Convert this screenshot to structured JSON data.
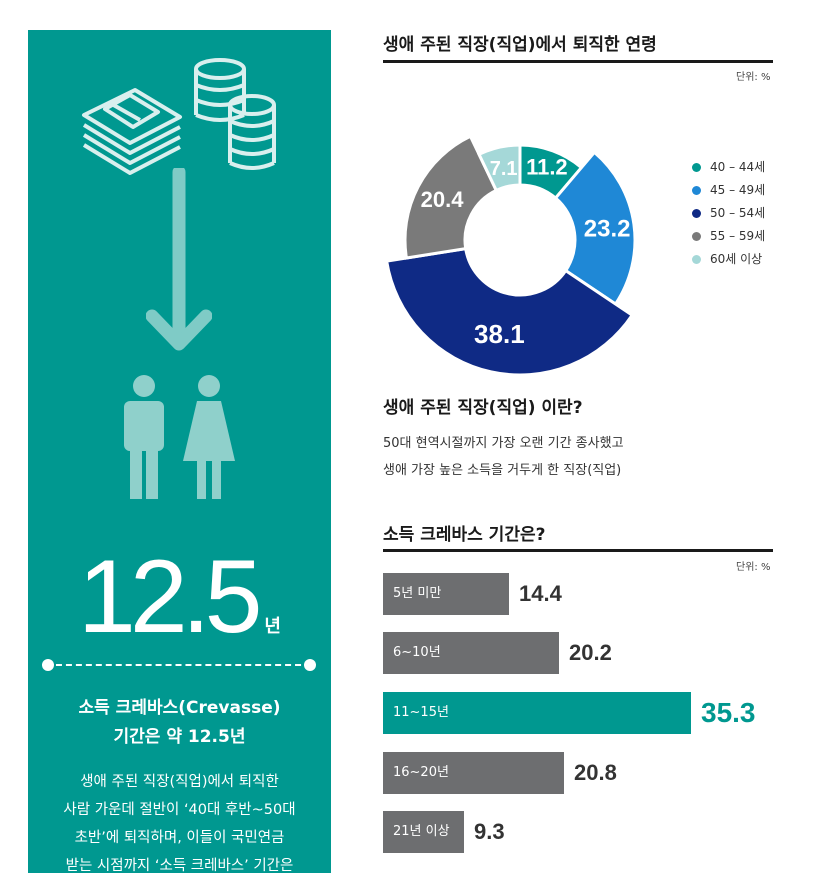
{
  "left_panel": {
    "big_number": "12.5",
    "big_unit": "년",
    "title_line1": "소득 크레바스(Crevasse)",
    "title_line2": "기간은 약 12.5년",
    "desc_line1": "생애 주된 직장(직업)에서 퇴직한",
    "desc_line2": "사람 가운데 절반이 ‘40대 후반~50대",
    "desc_line3": "초반’에 퇴직하며, 이들이 국민연금",
    "desc_line4": "받는 시점까지 ‘소득 크레바스’ 기간은"
  },
  "section1": {
    "title": "생애 주된 직장(직업)에서 퇴직한 연령",
    "unit": "단위: %"
  },
  "section2": {
    "title": "생애 주된 직장(직업) 이란?",
    "line1": "50대 현역시절까지 가장 오랜 기간 종사했고",
    "line2": "생애 가장 높은 소득을 거두게 한 직장(직업)"
  },
  "section3": {
    "title": "소득 크레바스 기간은?",
    "unit": "단위: %"
  },
  "chart_data": [
    {
      "type": "pie",
      "title": "생애 주된 직장(직업)에서 퇴직한 연령",
      "unit": "단위: %",
      "categories": [
        "40 – 44세",
        "45 – 49세",
        "50 – 54세",
        "55 – 59세",
        "60세 이상"
      ],
      "values": [
        11.2,
        23.2,
        38.1,
        20.4,
        7.1
      ],
      "value_labels": [
        "11.2",
        "23.2",
        "38.1",
        "20.4",
        "7.1"
      ],
      "colors": [
        "#009890",
        "#1f88d6",
        "#0f2a85",
        "#7a7a7a",
        "#a5d8d8"
      ],
      "legend_position": "right"
    },
    {
      "type": "bar",
      "orientation": "horizontal",
      "title": "소득 크레바스 기간은?",
      "unit": "단위: %",
      "categories": [
        "5년 미만",
        "6~10년",
        "11~15년",
        "16~20년",
        "21년 이상"
      ],
      "values": [
        14.4,
        20.2,
        35.3,
        20.8,
        9.3
      ],
      "value_labels": [
        "14.4",
        "20.2",
        "35.3",
        "20.8",
        "9.3"
      ],
      "colors": [
        "#6d6e70",
        "#6d6e70",
        "#009890",
        "#6d6e70",
        "#6d6e70"
      ],
      "value_colors": [
        "#333333",
        "#333333",
        "#009890",
        "#333333",
        "#333333"
      ],
      "xlim": [
        0,
        35.3
      ]
    }
  ],
  "colors": {
    "teal": "#009890",
    "white": "#ffffff",
    "icon_light": "#d9efee",
    "icon_arrow": "#7fcbc6",
    "icon_people": "#8fd0cb"
  }
}
